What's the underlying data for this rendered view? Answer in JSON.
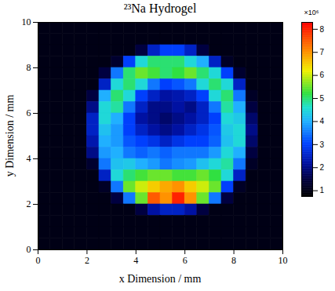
{
  "chart_data": {
    "type": "heatmap",
    "title": "²³Na Hydrogel",
    "x_label": "x Dimension / mm",
    "y_label": "y Dimension / mm",
    "xlim": [
      0,
      10
    ],
    "ylim": [
      0,
      10
    ],
    "xticks": [
      0,
      2,
      4,
      6,
      8,
      10
    ],
    "yticks": [
      0,
      2,
      4,
      6,
      8,
      10
    ],
    "grid": false,
    "x": [
      0.25,
      0.75,
      1.25,
      1.75,
      2.25,
      2.75,
      3.25,
      3.75,
      4.25,
      4.75,
      5.25,
      5.75,
      6.25,
      6.75,
      7.25,
      7.75,
      8.25,
      8.75,
      9.25,
      9.75
    ],
    "y": [
      9.75,
      9.25,
      8.75,
      8.25,
      7.75,
      7.25,
      6.75,
      6.25,
      5.75,
      5.25,
      4.75,
      4.25,
      3.75,
      3.25,
      2.75,
      2.25,
      1.75,
      1.25,
      0.75,
      0.25
    ],
    "cells": [
      [
        1,
        1,
        1,
        1,
        1,
        1,
        1,
        1,
        1,
        1,
        1,
        1,
        1,
        1,
        1,
        1,
        1,
        1,
        1,
        1
      ],
      [
        1,
        1,
        1,
        1,
        1,
        1,
        1,
        1,
        1,
        1,
        1,
        1,
        1,
        1,
        1,
        1,
        1,
        1,
        1,
        1
      ],
      [
        1,
        1,
        1,
        1,
        1,
        1,
        1,
        1,
        1.5,
        2.5,
        3,
        3,
        2.5,
        1.5,
        1,
        1,
        1,
        1,
        1,
        1
      ],
      [
        1,
        1,
        1,
        1,
        1,
        1,
        1.3,
        3,
        4.5,
        5,
        5,
        5,
        4.5,
        4,
        2.5,
        1.2,
        1,
        1,
        1,
        1
      ],
      [
        1,
        1,
        1,
        1,
        1,
        1.5,
        3.5,
        5,
        5.5,
        5.3,
        5,
        5.2,
        5.5,
        5,
        4.5,
        3,
        1.3,
        1,
        1,
        1
      ],
      [
        1,
        1,
        1,
        1,
        1,
        2.5,
        4.5,
        5,
        4.5,
        3.5,
        3,
        3.2,
        3.5,
        4.5,
        5,
        4.5,
        2.5,
        1,
        1,
        1
      ],
      [
        1,
        1,
        1,
        1,
        1.5,
        4,
        5,
        4.5,
        3,
        2.5,
        2.2,
        2.3,
        2.5,
        3,
        4.5,
        5,
        3.5,
        1.2,
        1,
        1
      ],
      [
        1,
        1,
        1,
        1,
        2,
        4.5,
        4.8,
        3.5,
        2.5,
        2,
        2,
        2.2,
        2,
        2.5,
        3.5,
        4.8,
        4,
        1.5,
        1,
        1
      ],
      [
        1,
        1,
        1,
        1,
        2.5,
        4.5,
        4,
        3,
        2.2,
        2,
        1.8,
        2,
        2.2,
        2.5,
        3,
        4.5,
        4.3,
        1.8,
        1,
        1
      ],
      [
        1,
        1,
        1,
        1,
        2.5,
        4.2,
        3.8,
        3,
        2.5,
        2.2,
        2,
        2.2,
        2.5,
        2.8,
        3.2,
        4.3,
        4.5,
        2,
        1,
        1
      ],
      [
        1,
        1,
        1,
        1,
        2.3,
        4,
        3.8,
        3.2,
        3,
        2.8,
        2.5,
        2.8,
        3,
        3,
        3.3,
        4.2,
        4.5,
        1.8,
        1,
        1
      ],
      [
        1,
        1,
        1,
        1,
        2,
        3.8,
        4,
        3.5,
        3.3,
        3.5,
        3.3,
        3.5,
        3.5,
        3.5,
        3.8,
        4.5,
        4,
        1.5,
        1,
        1
      ],
      [
        1,
        1,
        1,
        1,
        1.3,
        3.5,
        4.2,
        4.3,
        4,
        3.8,
        3.5,
        3.7,
        3.8,
        4.2,
        4.5,
        4.8,
        3.5,
        1.2,
        1,
        1
      ],
      [
        1,
        1,
        1,
        1,
        1,
        2.5,
        4.5,
        5,
        5.3,
        5.5,
        5.5,
        5.3,
        5.3,
        5.5,
        5.2,
        4.5,
        2.5,
        1,
        1,
        1
      ],
      [
        1,
        1,
        1,
        1,
        1,
        1.2,
        3.5,
        5.5,
        6,
        6.5,
        6.8,
        7,
        6.5,
        6,
        5.5,
        3,
        1.2,
        1,
        1,
        1
      ],
      [
        1,
        1,
        1,
        1,
        1,
        1,
        1.5,
        3.5,
        5.5,
        7.5,
        7,
        8,
        7,
        5.5,
        3.5,
        1.5,
        1,
        1,
        1,
        1
      ],
      [
        1,
        1,
        1,
        1,
        1,
        1,
        1,
        1,
        1.5,
        2.2,
        2.5,
        2.5,
        2.2,
        1.5,
        1,
        1,
        1,
        1,
        1,
        1
      ],
      [
        1,
        1,
        1,
        1,
        1,
        1,
        1,
        1,
        1,
        1,
        1,
        1,
        1,
        1,
        1,
        1,
        1,
        1,
        1,
        1
      ],
      [
        1,
        1,
        1,
        1,
        1,
        1,
        1,
        1,
        1,
        1,
        1,
        1,
        1,
        1,
        1,
        1,
        1,
        1,
        1,
        1
      ],
      [
        1,
        1,
        1,
        1,
        1,
        1,
        1,
        1,
        1,
        1,
        1,
        1,
        1,
        1,
        1,
        1,
        1,
        1,
        1,
        1
      ]
    ],
    "colorbar": {
      "range": [
        0.75,
        8.3
      ],
      "ticks": [
        1,
        2,
        3,
        4,
        5,
        6,
        7,
        8
      ],
      "label": "×10⁶"
    }
  }
}
